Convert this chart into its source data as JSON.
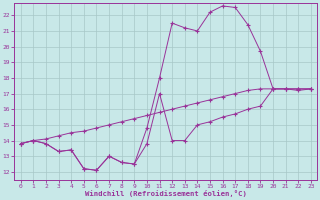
{
  "bg_color": "#c8e8e8",
  "line_color": "#993399",
  "xlabel": "Windchill (Refroidissement éolien,°C)",
  "xlim_min": -0.5,
  "xlim_max": 23.5,
  "ylim_min": 11.5,
  "ylim_max": 22.8,
  "xticks": [
    0,
    1,
    2,
    3,
    4,
    5,
    6,
    7,
    8,
    9,
    10,
    11,
    12,
    13,
    14,
    15,
    16,
    17,
    18,
    19,
    20,
    21,
    22,
    23
  ],
  "yticks": [
    12,
    13,
    14,
    15,
    16,
    17,
    18,
    19,
    20,
    21,
    22
  ],
  "line_zigzag_x": [
    0,
    1,
    2,
    3,
    4,
    5,
    6,
    7,
    8,
    9,
    10,
    11,
    12,
    13,
    14,
    15,
    16,
    17,
    18,
    19,
    20,
    21,
    22,
    23
  ],
  "line_zigzag_y": [
    13.8,
    14.0,
    13.8,
    13.3,
    13.4,
    12.2,
    12.1,
    13.0,
    12.6,
    12.5,
    13.8,
    17.0,
    14.0,
    14.0,
    15.0,
    15.2,
    15.5,
    15.7,
    16.0,
    16.2,
    17.3,
    17.3,
    17.3,
    17.3
  ],
  "line_peak_x": [
    0,
    1,
    2,
    3,
    4,
    5,
    6,
    7,
    8,
    9,
    10,
    11,
    12,
    13,
    14,
    15,
    16,
    17,
    18,
    19,
    20,
    21,
    22,
    23
  ],
  "line_peak_y": [
    13.8,
    14.0,
    13.8,
    13.3,
    13.4,
    12.2,
    12.1,
    13.0,
    12.6,
    12.5,
    14.8,
    18.0,
    21.5,
    21.2,
    21.0,
    22.2,
    22.6,
    22.5,
    21.4,
    19.7,
    17.3,
    17.3,
    17.2,
    17.3
  ],
  "line_diag_x": [
    0,
    1,
    2,
    3,
    4,
    5,
    6,
    7,
    8,
    9,
    10,
    11,
    12,
    13,
    14,
    15,
    16,
    17,
    18,
    19,
    20,
    21,
    22,
    23
  ],
  "line_diag_y": [
    13.8,
    14.0,
    14.1,
    14.3,
    14.5,
    14.6,
    14.8,
    15.0,
    15.2,
    15.4,
    15.6,
    15.8,
    16.0,
    16.2,
    16.4,
    16.6,
    16.8,
    17.0,
    17.2,
    17.3,
    17.3,
    17.3,
    17.3,
    17.3
  ]
}
